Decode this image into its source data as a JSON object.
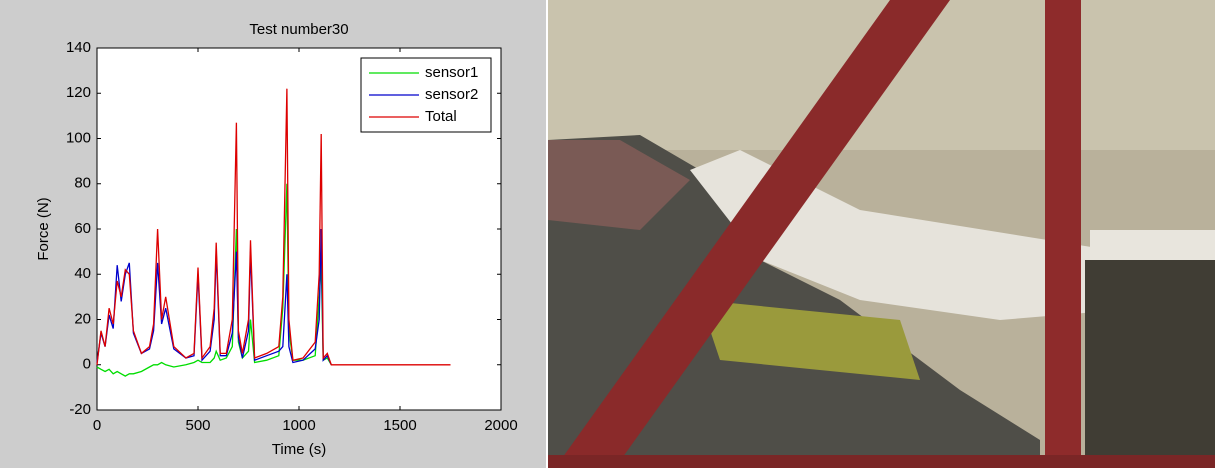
{
  "chart_data": {
    "type": "line",
    "title": "Test number30",
    "x_label": "Time (s)",
    "y_label": "Force (N)",
    "x": [
      0,
      20,
      40,
      60,
      80,
      100,
      120,
      140,
      160,
      180,
      220,
      260,
      280,
      300,
      320,
      340,
      380,
      440,
      480,
      500,
      520,
      560,
      580,
      590,
      610,
      640,
      670,
      690,
      700,
      720,
      750,
      760,
      780,
      840,
      900,
      920,
      940,
      950,
      970,
      1020,
      1080,
      1100,
      1110,
      1120,
      1140,
      1160,
      1750
    ],
    "series": [
      {
        "name": "sensor1",
        "color": "#00dd00",
        "values": [
          -1,
          -2,
          -3,
          -2,
          -4,
          -3,
          -4,
          -5,
          -4,
          -4,
          -3,
          -1,
          0,
          0,
          1,
          0,
          -1,
          0,
          1,
          2,
          1,
          1,
          3,
          6,
          2,
          3,
          8,
          60,
          10,
          3,
          6,
          20,
          1,
          2,
          4,
          25,
          80,
          15,
          2,
          2,
          4,
          30,
          45,
          2,
          3,
          0,
          null
        ]
      },
      {
        "name": "sensor2",
        "color": "#0000cc",
        "values": [
          1,
          14,
          8,
          22,
          16,
          44,
          28,
          40,
          45,
          14,
          5,
          7,
          15,
          45,
          18,
          25,
          7,
          3,
          4,
          40,
          2,
          6,
          20,
          50,
          4,
          4,
          14,
          50,
          12,
          3,
          15,
          50,
          2,
          4,
          6,
          8,
          40,
          8,
          1,
          2,
          7,
          20,
          60,
          2,
          4,
          0,
          null
        ]
      },
      {
        "name": "Total",
        "color": "#dd0000",
        "values": [
          0,
          15,
          8,
          25,
          18,
          37,
          30,
          42,
          40,
          15,
          5,
          8,
          18,
          60,
          20,
          30,
          8,
          3,
          5,
          43,
          3,
          8,
          25,
          54,
          5,
          5,
          20,
          107,
          15,
          5,
          20,
          55,
          3,
          5,
          8,
          30,
          122,
          20,
          2,
          3,
          10,
          40,
          102,
          3,
          5,
          0,
          0
        ]
      }
    ],
    "xlim": [
      0,
      2000
    ],
    "xticks": [
      0,
      500,
      1000,
      1500,
      2000
    ],
    "ylim": [
      -20,
      140
    ],
    "yticks": [
      -20,
      0,
      20,
      40,
      60,
      80,
      100,
      120,
      140
    ],
    "legend": "upper-right"
  }
}
